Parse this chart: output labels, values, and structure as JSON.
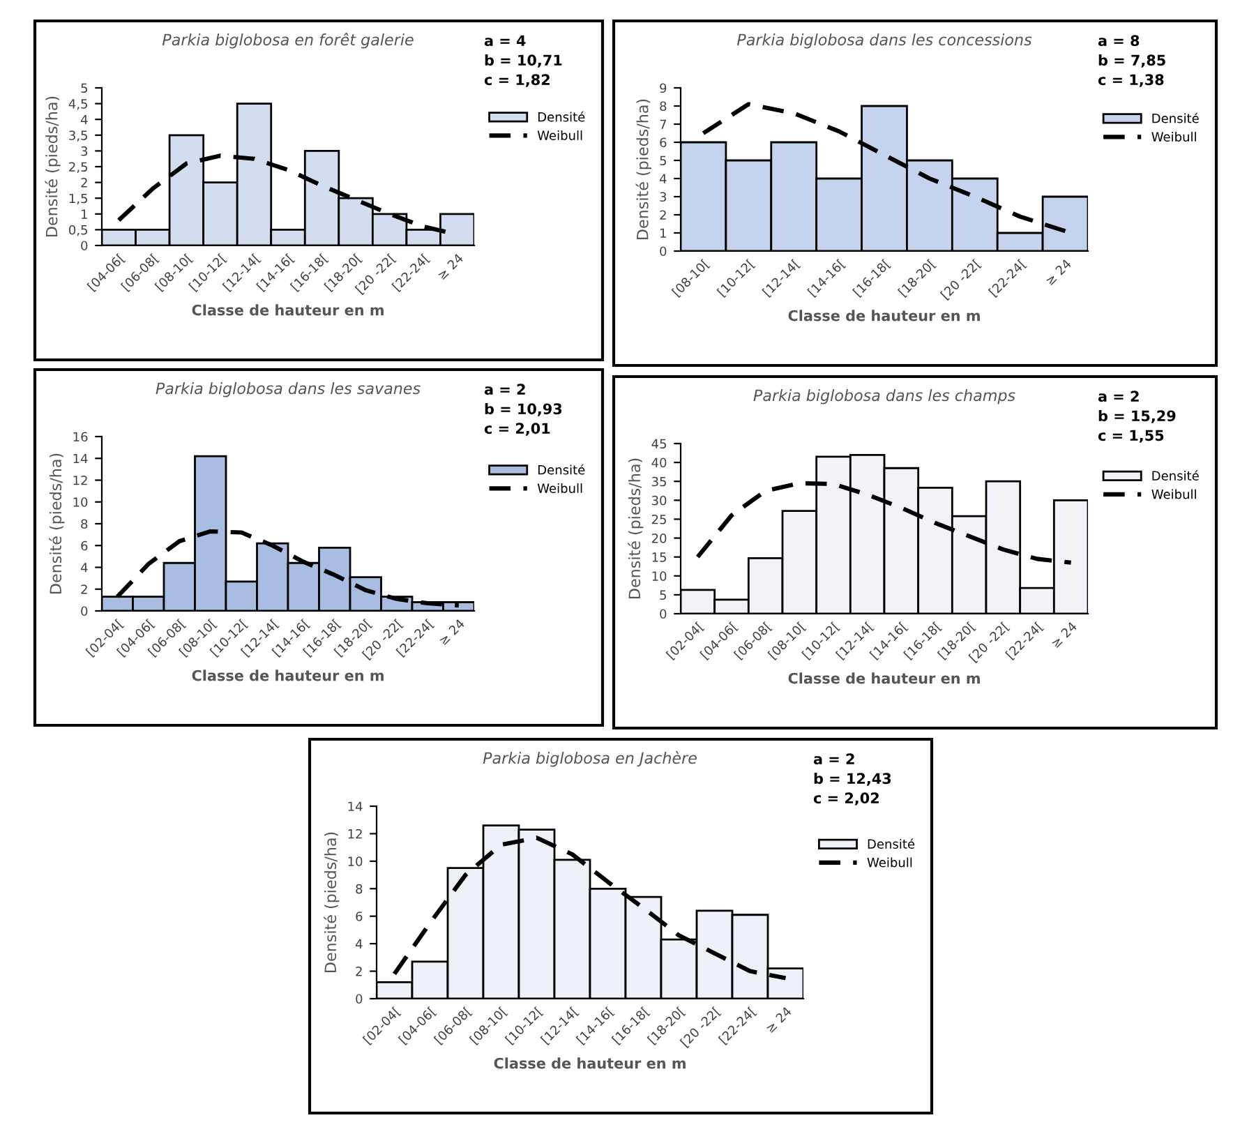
{
  "chart_data": [
    {
      "type": "bar",
      "title": "Parkia biglobosa en forêt galerie",
      "xlabel": "Classe de hauteur en m",
      "ylabel": "Densité (pieds/ha)",
      "annotations": [
        "a = 4",
        "b = 10,71",
        "c = 1,82"
      ],
      "categories": [
        "[04-06[",
        "[06-08[",
        "[08-10[",
        "[10-12[",
        "[12-14[",
        "[14-16[",
        "[16-18[",
        "[18-20[",
        "[20 -22[",
        "[22-24[",
        "≥ 24"
      ],
      "series": [
        {
          "name": "Densité",
          "color": "#d3ddf0",
          "values": [
            0.5,
            0.5,
            3.5,
            2,
            4.5,
            0.5,
            3,
            1.5,
            1,
            0.5,
            1
          ]
        },
        {
          "name": "Weibull",
          "type": "line",
          "color": "#000000",
          "line_style": "dashed",
          "values": [
            0.8,
            1.8,
            2.6,
            2.85,
            2.75,
            2.4,
            1.9,
            1.45,
            1.0,
            0.6,
            0.35
          ]
        }
      ],
      "ylim": [
        0,
        5
      ],
      "yticks": [
        0,
        {
          "value": 0.5,
          "label": "0,5"
        },
        1,
        {
          "value": 1.5,
          "label": "1,5"
        },
        2,
        {
          "value": 2.5,
          "label": "2,5"
        },
        3,
        {
          "value": 3.5,
          "label": "3,5"
        },
        4,
        {
          "value": 4.5,
          "label": "4,5"
        },
        5
      ],
      "legend": "right",
      "marker": "none"
    },
    {
      "type": "bar",
      "title": "Parkia biglobosa dans les concessions",
      "xlabel": "Classe de hauteur en m",
      "ylabel": "Densité (pieds/ha)",
      "annotations": [
        "a = 8",
        "b = 7,85",
        "c = 1,38"
      ],
      "categories": [
        "[08-10[",
        "[10-12[",
        "[12-14[",
        "[14-16[",
        "[16-18[",
        "[18-20[",
        "[20 -22[",
        "[22-24[",
        "≥ 24"
      ],
      "series": [
        {
          "name": "Densité",
          "color": "#c5d3ee",
          "values": [
            6,
            5,
            6,
            4,
            8,
            5,
            4,
            1,
            3
          ]
        },
        {
          "name": "Weibull",
          "type": "line",
          "color": "#000000",
          "line_style": "dashed",
          "values": [
            6.5,
            8.1,
            7.6,
            6.6,
            5.3,
            4.0,
            3.0,
            1.9,
            1.1
          ]
        }
      ],
      "ylim": [
        0,
        9
      ],
      "yticks": [
        0,
        1,
        2,
        3,
        4,
        5,
        6,
        7,
        8,
        9
      ],
      "legend": "right",
      "marker": "none"
    },
    {
      "type": "bar",
      "title": "Parkia biglobosa dans les savanes",
      "xlabel": "Classe de hauteur en m",
      "ylabel": "Densité (pieds/ha)",
      "annotations": [
        "a = 2",
        "b = 10,93",
        "c = 2,01"
      ],
      "categories": [
        "[02-04[",
        "[04-06[",
        "[06-08[",
        "[08-10[",
        "[10-12[",
        "[12-14[",
        "[14-16[",
        "[16-18[",
        "[18-20[",
        "[20 -22[",
        "[22-24[",
        "≥ 24"
      ],
      "series": [
        {
          "name": "Densité",
          "color": "#a9bde3",
          "values": [
            1.3,
            1.3,
            4.4,
            14.2,
            2.7,
            6.2,
            4.4,
            5.8,
            3.1,
            1.3,
            0.8,
            0.8
          ]
        },
        {
          "name": "Weibull",
          "type": "line",
          "color": "#000000",
          "line_style": "dashed",
          "values": [
            1.3,
            4.3,
            6.4,
            7.3,
            7.2,
            6.0,
            4.5,
            3.3,
            1.9,
            1.1,
            0.7,
            0.5
          ]
        }
      ],
      "ylim": [
        0,
        16
      ],
      "yticks": [
        0,
        2,
        4,
        6,
        8,
        10,
        12,
        14,
        16
      ],
      "legend": "right",
      "marker": "none"
    },
    {
      "type": "bar",
      "title": "Parkia biglobosa dans les champs",
      "xlabel": "Classe de hauteur en m",
      "ylabel": "Densité (pieds/ha)",
      "annotations": [
        "a = 2",
        "b = 15,29",
        "c = 1,55"
      ],
      "categories": [
        "[02-04[",
        "[04-06[",
        "[06-08[",
        "[08-10[",
        "[10-12[",
        "[12-14[",
        "[14-16[",
        "[16-18[",
        "[18-20[",
        "[20 -22[",
        "[22-24[",
        "≥ 24"
      ],
      "series": [
        {
          "name": "Densité",
          "color": "#f1f3f8",
          "values": [
            6.3,
            3.7,
            14.7,
            27.2,
            41.5,
            42.0,
            38.5,
            33.3,
            25.8,
            35.0,
            6.8,
            30.0
          ]
        },
        {
          "name": "Weibull",
          "type": "line",
          "color": "#000000",
          "line_style": "dashed",
          "values": [
            15,
            26,
            32.5,
            34.5,
            34.3,
            31.5,
            28,
            24,
            20.5,
            17,
            14.5,
            13.5
          ]
        }
      ],
      "ylim": [
        0,
        45
      ],
      "yticks": [
        0,
        5,
        10,
        15,
        20,
        25,
        30,
        35,
        40,
        45
      ],
      "legend": "right",
      "marker": "none"
    },
    {
      "type": "bar",
      "title": "Parkia biglobosa en Jachère",
      "xlabel": "Classe de hauteur en m",
      "ylabel": "Densité (pieds/ha)",
      "annotations": [
        "a = 2",
        "b = 12,43",
        "c = 2,02"
      ],
      "categories": [
        "[02-04[",
        "[04-06[",
        "[06-08[",
        "[08-10[",
        "[10-12[",
        "[12-14[",
        "[14-16[",
        "[16-18[",
        "[18-20[",
        "[20 -22[",
        "[22-24[",
        "≥ 24"
      ],
      "series": [
        {
          "name": "Densité",
          "color": "#eef1f8",
          "values": [
            1.2,
            2.7,
            9.5,
            12.6,
            12.3,
            10.1,
            8.0,
            7.4,
            4.3,
            6.4,
            6.1,
            2.2
          ]
        },
        {
          "name": "Weibull",
          "type": "line",
          "color": "#000000",
          "line_style": "dashed",
          "values": [
            1.8,
            5.5,
            9.0,
            11.2,
            11.7,
            10.5,
            8.5,
            6.6,
            4.6,
            3.3,
            2.0,
            1.5
          ]
        }
      ],
      "ylim": [
        0,
        14
      ],
      "yticks": [
        0,
        2,
        4,
        6,
        8,
        10,
        12,
        14
      ],
      "legend": "right",
      "marker": "none"
    }
  ]
}
